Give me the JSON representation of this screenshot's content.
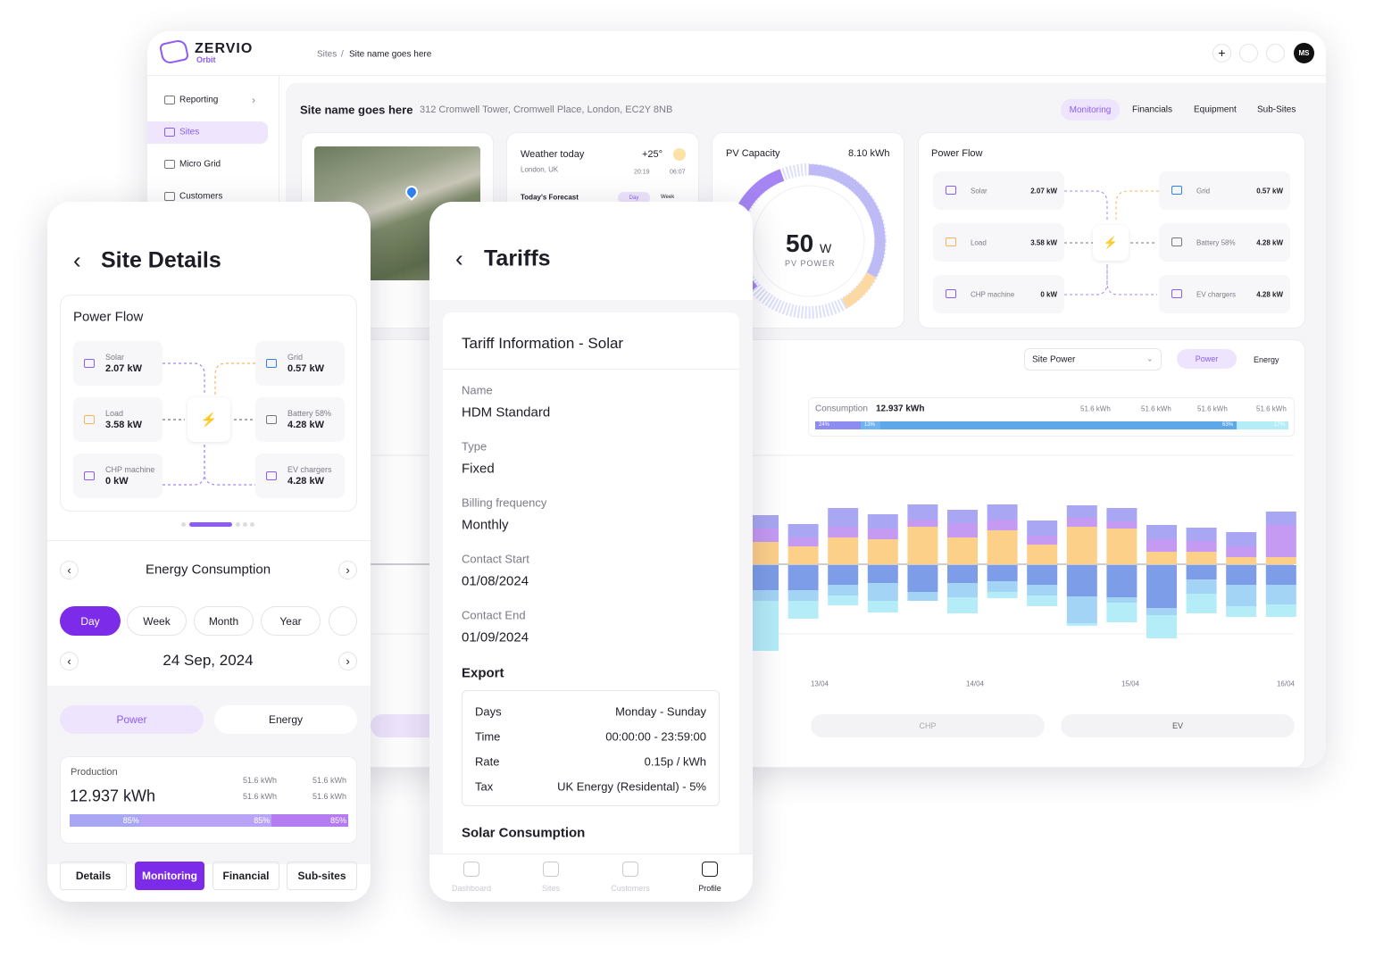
{
  "desktop": {
    "brand": "ZERVIO",
    "brand_sub": "Orbit",
    "breadcrumb": [
      "Sites",
      "Site name goes here"
    ],
    "avatar": "MS",
    "sidebar": [
      "Reporting",
      "Sites",
      "Micro Grid",
      "Customers"
    ],
    "site_name": "Site name goes here",
    "address": "312 Cromwell Tower, Cromwell Place, London, EC2Y 8NB",
    "tabs": [
      "Monitoring",
      "Financials",
      "Equipment",
      "Sub-Sites"
    ],
    "weather": {
      "title": "Weather today",
      "temp": "+25°",
      "location": "London, UK",
      "sunrise": "20:19",
      "sunset": "06:07",
      "forecast": "Today's Forecast",
      "periods": [
        "Day",
        "Week"
      ]
    },
    "pv": {
      "title": "PV Capacity",
      "capacity": "8.10 kWh",
      "value": "50",
      "unit": "W",
      "label": "PV POWER"
    },
    "power_flow": {
      "title": "Power Flow",
      "nodes": [
        {
          "label": "Solar",
          "value": "2.07 kW"
        },
        {
          "label": "Grid",
          "value": "0.57 kW"
        },
        {
          "label": "Load",
          "value": "3.58 kW"
        },
        {
          "label": "Battery 58%",
          "value": "4.28 kW"
        },
        {
          "label": "CHP machine",
          "value": "0 kW"
        },
        {
          "label": "EV chargers",
          "value": "4.28 kW"
        }
      ]
    },
    "chart_panel": {
      "select": "Site Power",
      "toggle": [
        "Power",
        "Energy"
      ],
      "consumption": {
        "label": "Consumption",
        "value": "12.937 kWh",
        "legend": [
          "51.6 kWh",
          "51.6 kWh",
          "51.6 kWh",
          "51.6 kWh"
        ],
        "segments": [
          "24%",
          "13%",
          "63%",
          "17%"
        ]
      },
      "x_labels": [
        "13/04",
        "14/04",
        "15/04",
        "16/04"
      ],
      "filters": [
        "CHP",
        "EV"
      ]
    }
  },
  "chart_data": {
    "type": "bar",
    "stacked": true,
    "series": [
      {
        "color": "#fdd08a",
        "values": [
          25,
          20,
          30,
          28,
          42,
          30,
          38,
          22,
          42,
          40,
          14,
          14,
          8,
          8
        ]
      },
      {
        "color": "#c59af3",
        "values": [
          15,
          10,
          12,
          12,
          8,
          16,
          12,
          10,
          10,
          8,
          14,
          12,
          12,
          36
        ]
      },
      {
        "color": "#a9a7f3",
        "values": [
          15,
          15,
          21,
          16,
          17,
          15,
          17,
          17,
          14,
          15,
          16,
          15,
          16,
          15
        ]
      },
      {
        "color": "#7d9de8",
        "values": [
          -28,
          -28,
          -22,
          -20,
          -30,
          -20,
          -18,
          -22,
          -35,
          -36,
          -48,
          -16,
          -22,
          -22
        ]
      },
      {
        "color": "#a3d3f5",
        "values": [
          -12,
          -12,
          -12,
          -20,
          -10,
          -16,
          -12,
          -12,
          -30,
          -6,
          -8,
          -16,
          -24,
          -22
        ]
      },
      {
        "color": "#b4ecf8",
        "values": [
          -56,
          -20,
          -11,
          -13,
          0,
          -18,
          -7,
          -12,
          -3,
          -22,
          -26,
          -22,
          -12,
          -14
        ]
      }
    ]
  },
  "site_details": {
    "title": "Site Details",
    "power_flow": {
      "title": "Power Flow",
      "nodes": [
        {
          "label": "Solar",
          "value": "2.07 kW"
        },
        {
          "label": "Grid",
          "value": "0.57 kW"
        },
        {
          "label": "Load",
          "value": "3.58 kW"
        },
        {
          "label": "Battery 58%",
          "value": "4.28 kW"
        },
        {
          "label": "CHP machine",
          "value": "0 kW"
        },
        {
          "label": "EV chargers",
          "value": "4.28 kW"
        }
      ]
    },
    "section": "Energy Consumption",
    "periods": [
      "Day",
      "Week",
      "Month",
      "Year"
    ],
    "date": "24 Sep, 2024",
    "toggle": [
      "Power",
      "Energy"
    ],
    "production": {
      "label": "Production",
      "value": "12.937 kWh",
      "legend": [
        "51.6 kWh",
        "51.6 kWh",
        "51.6 kWh",
        "51.6 kWh"
      ],
      "segments": [
        "85%",
        "85%",
        "85%"
      ]
    },
    "tabs": [
      "Details",
      "Monitoring",
      "Financial",
      "Sub-sites"
    ]
  },
  "tariffs": {
    "title": "Tariffs",
    "card_title": "Tariff Information - Solar",
    "fields": [
      {
        "label": "Name",
        "value": "HDM Standard"
      },
      {
        "label": "Type",
        "value": "Fixed"
      },
      {
        "label": "Billing frequency",
        "value": "Monthly"
      },
      {
        "label": "Contact Start",
        "value": "01/08/2024"
      },
      {
        "label": "Contact End",
        "value": "01/09/2024"
      }
    ],
    "export_title": "Export",
    "export": [
      {
        "label": "Days",
        "value": "Monday - Sunday"
      },
      {
        "label": "Time",
        "value": "00:00:00 - 23:59:00"
      },
      {
        "label": "Rate",
        "value": "0.15p / kWh"
      },
      {
        "label": "Tax",
        "value": "UK Energy (Residental) - 5%"
      }
    ],
    "next_section": "Solar Consumption",
    "nav": [
      "Dashboard",
      "Sites",
      "Customers",
      "Profile"
    ]
  }
}
